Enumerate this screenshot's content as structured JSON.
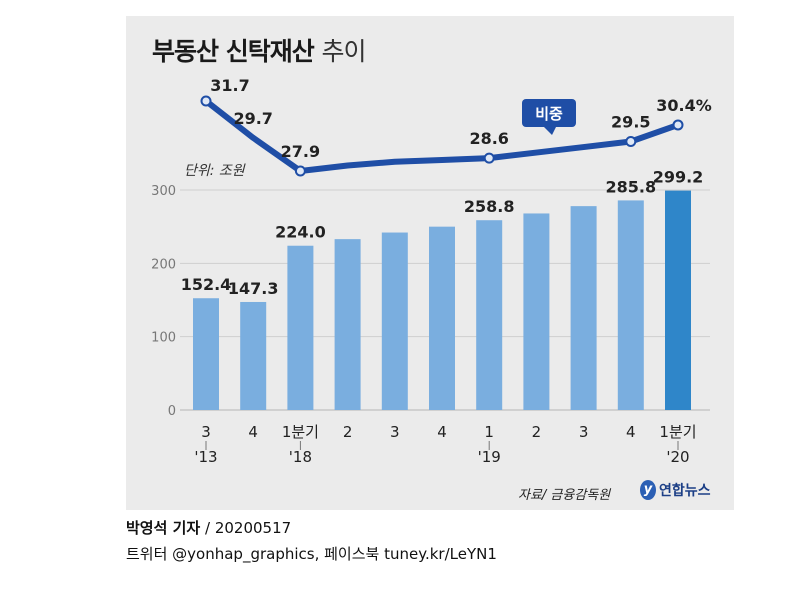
{
  "header": {
    "title": "부동산 신탁재산",
    "subtitle": "추이"
  },
  "unit_label": "단위: 조원",
  "source_label": "자료/ 금융감독원",
  "logo_text": "연합뉴스",
  "logo_mark": "y",
  "byline": {
    "author": "박영석 기자",
    "date": "/ 20200517"
  },
  "social": "트위터 @yonhap_graphics, 페이스북 tuney.kr/LeYN1",
  "chart_data": {
    "type": "bar",
    "categories": [
      "3",
      "4",
      "1분기",
      "2",
      "3",
      "4",
      "1",
      "2",
      "3",
      "4",
      "1분기"
    ],
    "year_labels": [
      "'13",
      "",
      "'18",
      "",
      "",
      "",
      "'19",
      "",
      "",
      "",
      "'20"
    ],
    "series": [
      {
        "values": [
          152.4,
          147.3,
          224.0,
          233,
          242,
          250,
          258.8,
          268,
          278,
          285.8,
          299.2
        ],
        "value_labels": [
          "152.4",
          "147.3",
          "224.0",
          "",
          "",
          "",
          "258.8",
          "",
          "",
          "285.8",
          "299.2"
        ],
        "color": "#7aaedf",
        "highlight_color": "#2f86c9"
      },
      {
        "name": "비중",
        "type": "line",
        "values": [
          31.7,
          29.7,
          27.9,
          28.2,
          28.4,
          28.5,
          28.6,
          28.9,
          29.2,
          29.5,
          30.4
        ],
        "value_labels": [
          "31.7",
          "29.7",
          "27.9",
          "",
          "",
          "",
          "28.6",
          "",
          "",
          "29.5",
          "30.4%"
        ],
        "color": "#1f4ea6"
      }
    ],
    "y_ticks": [
      "0",
      "100",
      "200",
      "300"
    ],
    "ylim": [
      0,
      300
    ],
    "grid": true
  }
}
